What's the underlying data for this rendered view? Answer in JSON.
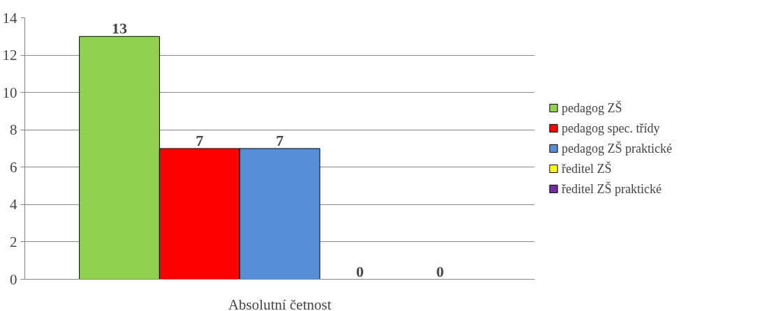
{
  "chart_data": {
    "type": "bar",
    "categories": [
      "Absolutní četnost"
    ],
    "series": [
      {
        "name": "pedagog ZŠ",
        "color": "#92d050",
        "values": [
          13
        ]
      },
      {
        "name": "pedagog spec. třídy",
        "color": "#ff0000",
        "values": [
          7
        ]
      },
      {
        "name": "pedagog ZŠ praktické",
        "color": "#558ed5",
        "values": [
          7
        ]
      },
      {
        "name": "ředitel ZŠ",
        "color": "#ffff00",
        "values": [
          0
        ]
      },
      {
        "name": "ředitel ZŠ praktické",
        "color": "#7030a0",
        "values": [
          0
        ]
      }
    ],
    "ylim": [
      0,
      14
    ],
    "yticks": [
      0,
      2,
      4,
      6,
      8,
      10,
      12,
      14
    ],
    "grid": "y",
    "legend": "right",
    "data_labels": true
  }
}
